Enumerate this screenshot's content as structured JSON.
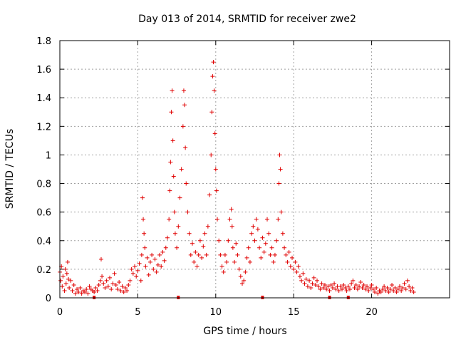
{
  "chart_data": {
    "type": "scatter",
    "title": "Day 013 of 2014, SRMTID for receiver zwe2",
    "xlabel": "GPS time / hours",
    "ylabel": "SRMTID / TECUs",
    "xlim": [
      0,
      25
    ],
    "ylim": [
      0,
      1.8
    ],
    "x_ticks": [
      0,
      5,
      10,
      15,
      20
    ],
    "x_tick_labels": [
      "0",
      "5",
      "10",
      "15",
      "20"
    ],
    "y_ticks": [
      0,
      0.2,
      0.4,
      0.6,
      0.8,
      1,
      1.2,
      1.4,
      1.6,
      1.8
    ],
    "y_tick_labels": [
      "0",
      "0.2",
      "0.4",
      "0.6",
      "0.8",
      "1",
      "1.2",
      "1.4",
      "1.6",
      "1.8"
    ],
    "grid": true,
    "marker": "+",
    "color": "#e00000",
    "series": [
      {
        "name": "SRMTID",
        "points": [
          [
            0.0,
            0.18
          ],
          [
            0.05,
            0.12
          ],
          [
            0.1,
            0.22
          ],
          [
            0.15,
            0.08
          ],
          [
            0.2,
            0.15
          ],
          [
            0.3,
            0.05
          ],
          [
            0.35,
            0.2
          ],
          [
            0.4,
            0.1
          ],
          [
            0.45,
            0.17
          ],
          [
            0.5,
            0.25
          ],
          [
            0.55,
            0.13
          ],
          [
            0.6,
            0.07
          ],
          [
            0.7,
            0.12
          ],
          [
            0.8,
            0.05
          ],
          [
            0.9,
            0.09
          ],
          [
            1.0,
            0.03
          ],
          [
            1.1,
            0.06
          ],
          [
            1.2,
            0.04
          ],
          [
            1.3,
            0.07
          ],
          [
            1.4,
            0.03
          ],
          [
            1.5,
            0.05
          ],
          [
            1.6,
            0.04
          ],
          [
            1.7,
            0.06
          ],
          [
            1.8,
            0.03
          ],
          [
            1.9,
            0.08
          ],
          [
            2.0,
            0.06
          ],
          [
            2.1,
            0.05
          ],
          [
            2.2,
            0.04
          ],
          [
            2.3,
            0.07
          ],
          [
            2.4,
            0.05
          ],
          [
            2.5,
            0.09
          ],
          [
            2.6,
            0.12
          ],
          [
            2.65,
            0.27
          ],
          [
            2.7,
            0.15
          ],
          [
            2.8,
            0.1
          ],
          [
            2.9,
            0.07
          ],
          [
            3.0,
            0.12
          ],
          [
            3.1,
            0.08
          ],
          [
            3.2,
            0.14
          ],
          [
            3.3,
            0.06
          ],
          [
            3.4,
            0.1
          ],
          [
            3.5,
            0.17
          ],
          [
            3.6,
            0.09
          ],
          [
            3.7,
            0.06
          ],
          [
            3.8,
            0.11
          ],
          [
            3.9,
            0.05
          ],
          [
            4.0,
            0.08
          ],
          [
            4.1,
            0.04
          ],
          [
            4.2,
            0.07
          ],
          [
            4.3,
            0.05
          ],
          [
            4.4,
            0.09
          ],
          [
            4.5,
            0.12
          ],
          [
            4.6,
            0.2
          ],
          [
            4.7,
            0.17
          ],
          [
            4.8,
            0.22
          ],
          [
            4.9,
            0.15
          ],
          [
            5.0,
            0.19
          ],
          [
            5.1,
            0.24
          ],
          [
            5.2,
            0.12
          ],
          [
            5.25,
            0.3
          ],
          [
            5.3,
            0.7
          ],
          [
            5.35,
            0.55
          ],
          [
            5.4,
            0.45
          ],
          [
            5.45,
            0.35
          ],
          [
            5.5,
            0.22
          ],
          [
            5.6,
            0.28
          ],
          [
            5.7,
            0.16
          ],
          [
            5.8,
            0.25
          ],
          [
            5.9,
            0.3
          ],
          [
            6.0,
            0.2
          ],
          [
            6.1,
            0.27
          ],
          [
            6.2,
            0.18
          ],
          [
            6.3,
            0.23
          ],
          [
            6.4,
            0.3
          ],
          [
            6.5,
            0.22
          ],
          [
            6.6,
            0.32
          ],
          [
            6.7,
            0.26
          ],
          [
            6.8,
            0.35
          ],
          [
            6.9,
            0.42
          ],
          [
            7.0,
            0.55
          ],
          [
            7.05,
            0.75
          ],
          [
            7.1,
            0.95
          ],
          [
            7.15,
            1.3
          ],
          [
            7.2,
            1.45
          ],
          [
            7.25,
            1.1
          ],
          [
            7.3,
            0.85
          ],
          [
            7.35,
            0.6
          ],
          [
            7.4,
            0.45
          ],
          [
            7.5,
            0.35
          ],
          [
            7.6,
            0.5
          ],
          [
            7.7,
            0.7
          ],
          [
            7.8,
            0.9
          ],
          [
            7.9,
            1.2
          ],
          [
            7.95,
            1.45
          ],
          [
            8.0,
            1.35
          ],
          [
            8.05,
            1.05
          ],
          [
            8.1,
            0.8
          ],
          [
            8.2,
            0.6
          ],
          [
            8.3,
            0.45
          ],
          [
            8.4,
            0.3
          ],
          [
            8.5,
            0.38
          ],
          [
            8.6,
            0.25
          ],
          [
            8.7,
            0.32
          ],
          [
            8.8,
            0.22
          ],
          [
            8.9,
            0.3
          ],
          [
            9.0,
            0.4
          ],
          [
            9.1,
            0.28
          ],
          [
            9.2,
            0.36
          ],
          [
            9.3,
            0.45
          ],
          [
            9.4,
            0.3
          ],
          [
            9.5,
            0.5
          ],
          [
            9.6,
            0.72
          ],
          [
            9.7,
            1.0
          ],
          [
            9.75,
            1.3
          ],
          [
            9.8,
            1.55
          ],
          [
            9.85,
            1.65
          ],
          [
            9.9,
            1.45
          ],
          [
            9.95,
            1.15
          ],
          [
            10.0,
            0.9
          ],
          [
            10.05,
            0.75
          ],
          [
            10.1,
            0.55
          ],
          [
            10.2,
            0.4
          ],
          [
            10.3,
            0.3
          ],
          [
            10.4,
            0.22
          ],
          [
            10.5,
            0.18
          ],
          [
            10.6,
            0.3
          ],
          [
            10.7,
            0.25
          ],
          [
            10.8,
            0.4
          ],
          [
            10.9,
            0.55
          ],
          [
            11.0,
            0.62
          ],
          [
            11.05,
            0.5
          ],
          [
            11.1,
            0.35
          ],
          [
            11.2,
            0.25
          ],
          [
            11.3,
            0.38
          ],
          [
            11.4,
            0.3
          ],
          [
            11.5,
            0.2
          ],
          [
            11.6,
            0.15
          ],
          [
            11.7,
            0.1
          ],
          [
            11.8,
            0.12
          ],
          [
            11.9,
            0.18
          ],
          [
            12.0,
            0.28
          ],
          [
            12.1,
            0.35
          ],
          [
            12.2,
            0.25
          ],
          [
            12.3,
            0.45
          ],
          [
            12.4,
            0.5
          ],
          [
            12.5,
            0.4
          ],
          [
            12.6,
            0.55
          ],
          [
            12.7,
            0.48
          ],
          [
            12.8,
            0.35
          ],
          [
            12.9,
            0.28
          ],
          [
            13.0,
            0.42
          ],
          [
            13.1,
            0.32
          ],
          [
            13.2,
            0.38
          ],
          [
            13.3,
            0.55
          ],
          [
            13.4,
            0.45
          ],
          [
            13.5,
            0.3
          ],
          [
            13.6,
            0.35
          ],
          [
            13.7,
            0.25
          ],
          [
            13.8,
            0.3
          ],
          [
            13.9,
            0.4
          ],
          [
            14.0,
            0.55
          ],
          [
            14.05,
            0.8
          ],
          [
            14.1,
            1.0
          ],
          [
            14.15,
            0.9
          ],
          [
            14.2,
            0.6
          ],
          [
            14.3,
            0.45
          ],
          [
            14.4,
            0.35
          ],
          [
            14.5,
            0.3
          ],
          [
            14.6,
            0.25
          ],
          [
            14.7,
            0.32
          ],
          [
            14.8,
            0.22
          ],
          [
            14.9,
            0.28
          ],
          [
            15.0,
            0.2
          ],
          [
            15.1,
            0.25
          ],
          [
            15.2,
            0.18
          ],
          [
            15.3,
            0.22
          ],
          [
            15.4,
            0.15
          ],
          [
            15.5,
            0.12
          ],
          [
            15.6,
            0.17
          ],
          [
            15.7,
            0.1
          ],
          [
            15.8,
            0.13
          ],
          [
            15.9,
            0.08
          ],
          [
            16.0,
            0.12
          ],
          [
            16.1,
            0.07
          ],
          [
            16.2,
            0.1
          ],
          [
            16.3,
            0.14
          ],
          [
            16.4,
            0.09
          ],
          [
            16.5,
            0.12
          ],
          [
            16.6,
            0.08
          ],
          [
            16.7,
            0.06
          ],
          [
            16.8,
            0.1
          ],
          [
            16.9,
            0.07
          ],
          [
            17.0,
            0.09
          ],
          [
            17.1,
            0.06
          ],
          [
            17.2,
            0.08
          ],
          [
            17.3,
            0.05
          ],
          [
            17.4,
            0.09
          ],
          [
            17.5,
            0.07
          ],
          [
            17.6,
            0.1
          ],
          [
            17.7,
            0.06
          ],
          [
            17.8,
            0.08
          ],
          [
            17.9,
            0.05
          ],
          [
            18.0,
            0.08
          ],
          [
            18.1,
            0.06
          ],
          [
            18.2,
            0.09
          ],
          [
            18.3,
            0.07
          ],
          [
            18.4,
            0.05
          ],
          [
            18.5,
            0.08
          ],
          [
            18.6,
            0.06
          ],
          [
            18.7,
            0.1
          ],
          [
            18.8,
            0.12
          ],
          [
            18.9,
            0.07
          ],
          [
            19.0,
            0.09
          ],
          [
            19.1,
            0.06
          ],
          [
            19.2,
            0.08
          ],
          [
            19.3,
            0.11
          ],
          [
            19.4,
            0.07
          ],
          [
            19.5,
            0.09
          ],
          [
            19.6,
            0.06
          ],
          [
            19.7,
            0.08
          ],
          [
            19.8,
            0.05
          ],
          [
            19.9,
            0.07
          ],
          [
            20.0,
            0.09
          ],
          [
            20.1,
            0.06
          ],
          [
            20.2,
            0.04
          ],
          [
            20.3,
            0.07
          ],
          [
            20.4,
            0.03
          ],
          [
            20.5,
            0.05
          ],
          [
            20.6,
            0.04
          ],
          [
            20.7,
            0.06
          ],
          [
            20.8,
            0.08
          ],
          [
            20.9,
            0.05
          ],
          [
            21.0,
            0.07
          ],
          [
            21.1,
            0.04
          ],
          [
            21.2,
            0.06
          ],
          [
            21.3,
            0.09
          ],
          [
            21.4,
            0.05
          ],
          [
            21.5,
            0.07
          ],
          [
            21.6,
            0.04
          ],
          [
            21.7,
            0.06
          ],
          [
            21.8,
            0.08
          ],
          [
            21.9,
            0.05
          ],
          [
            22.0,
            0.07
          ],
          [
            22.1,
            0.1
          ],
          [
            22.2,
            0.06
          ],
          [
            22.3,
            0.12
          ],
          [
            22.4,
            0.08
          ],
          [
            22.5,
            0.05
          ],
          [
            22.6,
            0.07
          ],
          [
            22.7,
            0.04
          ]
        ]
      }
    ],
    "gap_markers_x": [
      2.2,
      7.6,
      13.0,
      17.3,
      18.5
    ]
  }
}
